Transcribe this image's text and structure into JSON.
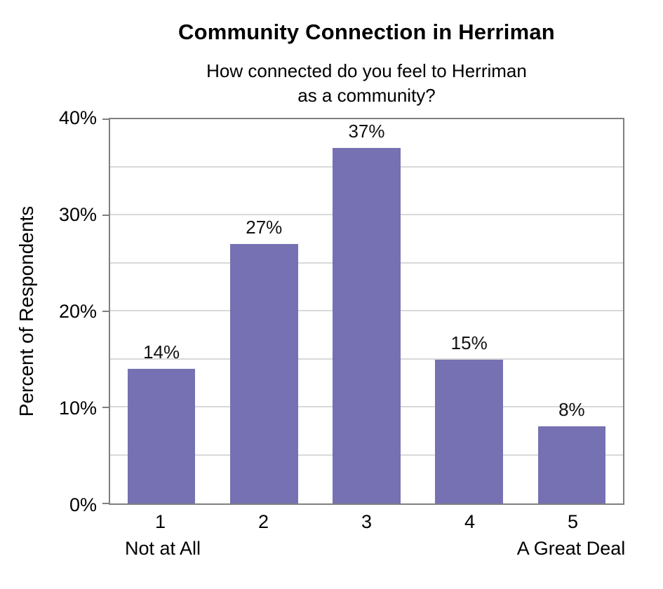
{
  "chart_data": {
    "type": "bar",
    "title": "Community Connection in Herriman",
    "subtitle_lines": [
      "How connected do you feel to Herriman",
      "as a community?"
    ],
    "ylabel": "Percent of Respondents",
    "xlabel": "",
    "categories": [
      "1",
      "2",
      "3",
      "4",
      "5"
    ],
    "values": [
      14,
      27,
      37,
      15,
      8
    ],
    "bar_labels": [
      "14%",
      "27%",
      "37%",
      "15%",
      "8%"
    ],
    "x_end_labels": {
      "left": "Not at All",
      "right": "A Great Deal"
    },
    "ylim": [
      0,
      40
    ],
    "y_ticks": [
      0,
      10,
      20,
      30,
      40
    ],
    "y_tick_labels": [
      "0%",
      "10%",
      "20%",
      "30%",
      "40%"
    ],
    "gridline_step": 5,
    "grid": true,
    "legend": "none",
    "colors": {
      "bar": "#7671B2",
      "grid": "#D9D9D9",
      "axis": "#7F7F7F",
      "text": "#000000"
    }
  }
}
